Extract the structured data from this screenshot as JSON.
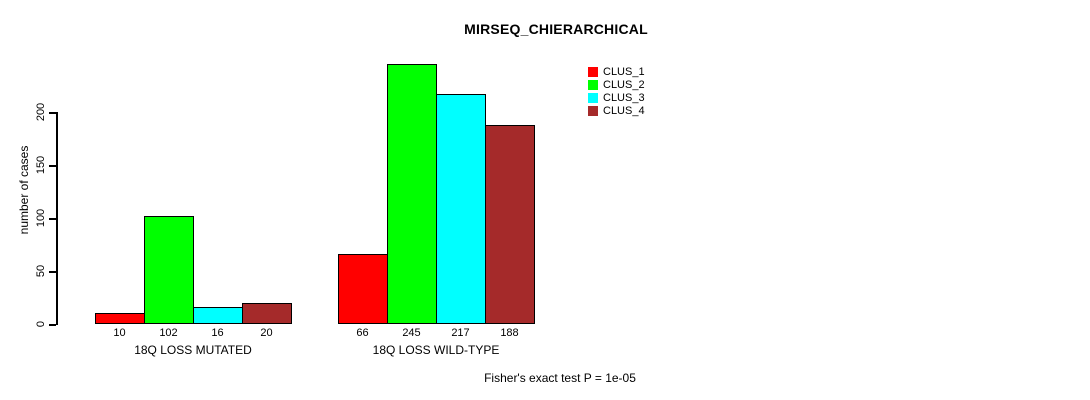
{
  "title": "MIRSEQ_CHIERARCHICAL",
  "footer": "Fisher's exact test P = 1e-05",
  "colors": {
    "clus_1": "#ff0000",
    "clus_2": "#00ff00",
    "clus_3": "#00ffff",
    "clus_4": "#a52a2a",
    "axis": "#000000",
    "background": "#ffffff"
  },
  "chart_data": {
    "type": "bar",
    "title": "MIRSEQ_CHIERARCHICAL",
    "xlabel": "",
    "ylabel": "number of cases",
    "categories": [
      "18Q LOSS MUTATED",
      "18Q LOSS WILD-TYPE"
    ],
    "series": [
      {
        "name": "CLUS_1",
        "color": "#ff0000",
        "values": [
          10,
          66
        ]
      },
      {
        "name": "CLUS_2",
        "color": "#00ff00",
        "values": [
          102,
          245
        ]
      },
      {
        "name": "CLUS_3",
        "color": "#00ffff",
        "values": [
          16,
          217
        ]
      },
      {
        "name": "CLUS_4",
        "color": "#a52a2a",
        "values": [
          20,
          188
        ]
      }
    ],
    "bar_value_labels": [
      [
        10,
        102,
        16,
        20
      ],
      [
        66,
        245,
        217,
        188
      ]
    ],
    "yticks": [
      0,
      50,
      100,
      150,
      200
    ],
    "ylim": [
      0,
      250
    ],
    "grid": false,
    "legend_position": "top-right",
    "legend_entries": [
      "CLUS_1",
      "CLUS_2",
      "CLUS_3",
      "CLUS_4"
    ],
    "annotation": "Fisher's exact test P = 1e-05"
  }
}
